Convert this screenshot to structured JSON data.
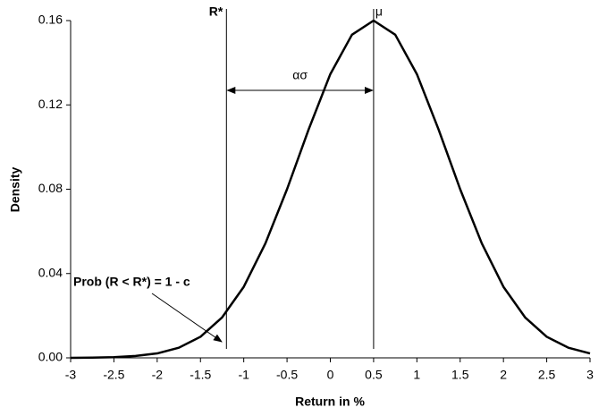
{
  "chart_data": {
    "type": "line",
    "x_label": "Return in %",
    "y_label": "Density",
    "x": [
      -3,
      -2.75,
      -2.5,
      -2.25,
      -2,
      -1.75,
      -1.5,
      -1.25,
      -1,
      -0.75,
      -0.5,
      -0.25,
      0,
      0.25,
      0.5,
      0.75,
      1,
      1.25,
      1.5,
      1.75,
      2,
      2.25,
      2.5,
      2.75,
      3
    ],
    "series": [
      {
        "color": "#000000",
        "values": [
          0.0,
          0.0001,
          0.0003,
          0.0009,
          0.0021,
          0.0048,
          0.01,
          0.0192,
          0.0337,
          0.0543,
          0.08,
          0.1084,
          0.1346,
          0.1533,
          0.16,
          0.1533,
          0.1346,
          0.1084,
          0.08,
          0.0543,
          0.0337,
          0.0192,
          0.01,
          0.0048,
          0.0021
        ]
      }
    ],
    "xlim": [
      -3,
      3
    ],
    "ylim": [
      0,
      0.16
    ],
    "xticks": [
      -3,
      -2.5,
      -2,
      -1.5,
      -1,
      -0.5,
      0,
      0.5,
      1,
      1.5,
      2,
      2.5,
      3
    ],
    "yticks": [
      {
        "value": 0,
        "label": "0.00"
      },
      {
        "value": 0.04,
        "label": "0.04"
      },
      {
        "value": 0.08,
        "label": "0.08"
      },
      {
        "value": 0.12,
        "label": "0.12"
      },
      {
        "value": 0.16,
        "label": "0.16"
      }
    ],
    "reference_lines": [
      {
        "label": "R*",
        "x": -1.2
      },
      {
        "label": "μ",
        "x": 0.5
      }
    ],
    "span_label": "ασ",
    "annotation": "Prob (R < R*) = 1 - c",
    "grid": false
  }
}
